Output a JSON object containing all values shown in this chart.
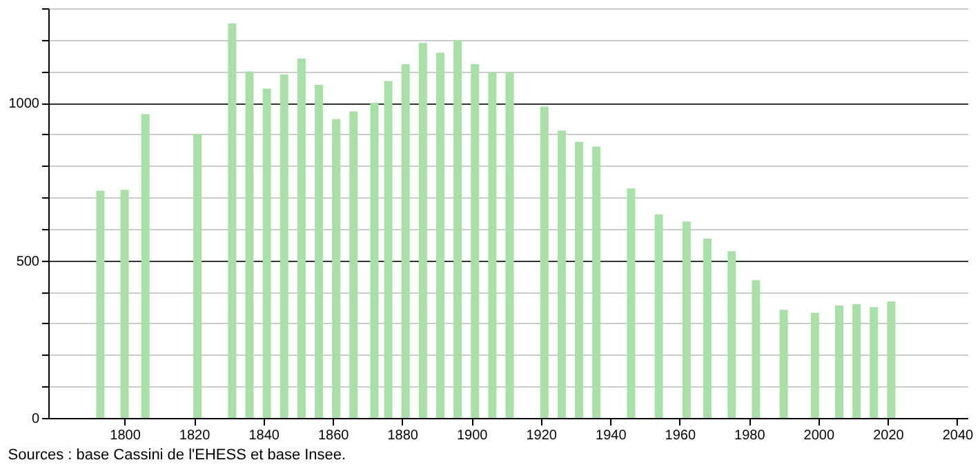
{
  "chart_data": {
    "type": "bar",
    "color": "#a8e0a8",
    "x": [
      1793,
      1800,
      1806,
      1821,
      1831,
      1836,
      1841,
      1846,
      1851,
      1856,
      1861,
      1866,
      1872,
      1876,
      1881,
      1886,
      1891,
      1896,
      1901,
      1906,
      1911,
      1921,
      1926,
      1931,
      1936,
      1946,
      1954,
      1962,
      1968,
      1975,
      1982,
      1990,
      1999,
      2006,
      2011,
      2016,
      2021
    ],
    "values": [
      721,
      724,
      964,
      901,
      1252,
      1100,
      1045,
      1090,
      1141,
      1057,
      948,
      973,
      1000,
      1069,
      1123,
      1190,
      1159,
      1198,
      1123,
      1097,
      1097,
      988,
      912,
      876,
      861,
      728,
      646,
      623,
      569,
      529,
      437,
      343,
      334,
      357,
      361,
      352,
      370
    ],
    "xlim": [
      1778,
      2043
    ],
    "xticks": [
      1800,
      1820,
      1840,
      1860,
      1880,
      1900,
      1920,
      1940,
      1960,
      1980,
      2000,
      2020,
      2040
    ],
    "ylim": [
      0,
      1300
    ],
    "yticks": [
      0,
      {
        "value": 100,
        "label": null
      },
      {
        "value": 200,
        "label": null
      },
      {
        "value": 300,
        "label": null
      },
      {
        "value": 400,
        "label": null
      },
      500,
      {
        "value": 600,
        "label": null
      },
      {
        "value": 700,
        "label": null
      },
      {
        "value": 800,
        "label": null
      },
      {
        "value": 900,
        "label": null
      },
      1000,
      {
        "value": 1100,
        "label": null
      },
      {
        "value": 1200,
        "label": null
      },
      {
        "value": 1300,
        "label": null
      }
    ],
    "grid": "y",
    "annotations": [
      "Sources : base Cassini de l'EHESS et base Insee."
    ]
  }
}
